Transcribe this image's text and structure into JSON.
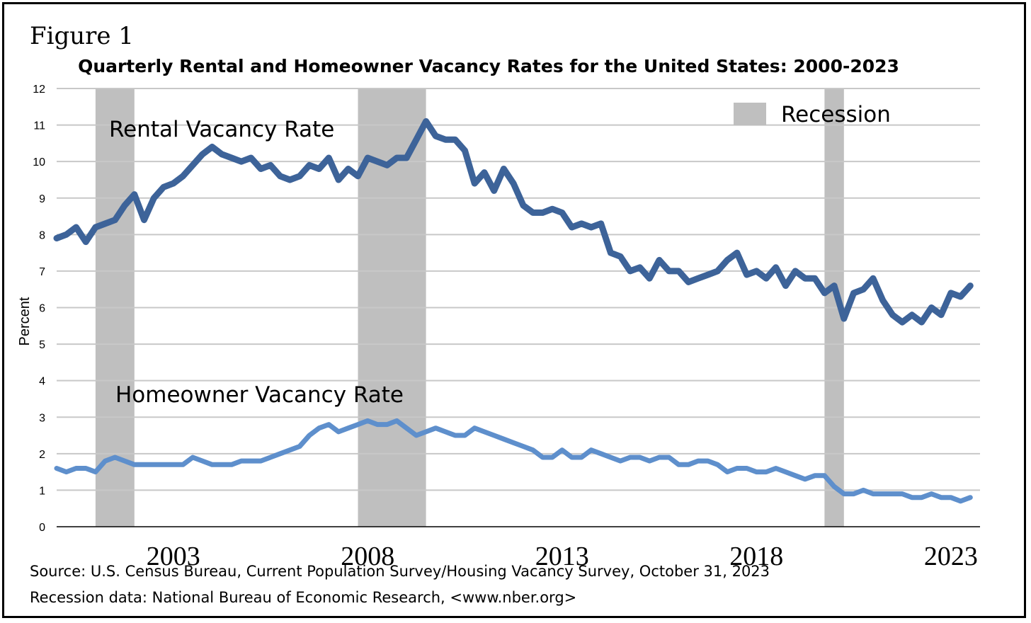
{
  "figure_label": "Figure 1",
  "source_lines": [
    "Source: U.S. Census Bureau, Current Population Survey/Housing Vacancy Survey, October 31, 2023",
    "Recession data: National Bureau of Economic Research, <www.nber.org>"
  ],
  "colors": {
    "rental": "#3D6399",
    "homeowner": "#5E8FCC",
    "recession": "#BFBFBF",
    "grid": "#C8C8C8",
    "axis": "#000000"
  },
  "chart_data": {
    "type": "line",
    "title": "Quarterly Rental and Homeowner Vacancy Rates for the United States: 2000-2023",
    "ylabel": "Percent",
    "xlabel": "",
    "ylim": [
      0,
      12
    ],
    "yticks": [
      0,
      1,
      2,
      3,
      4,
      5,
      6,
      7,
      8,
      9,
      10,
      11,
      12
    ],
    "xlim": [
      2000.0,
      2023.75
    ],
    "xticks": [
      2003,
      2008,
      2013,
      2018,
      2023
    ],
    "grid": true,
    "legend": {
      "position": "top-right",
      "entries": [
        "Recession"
      ]
    },
    "recessions": [
      {
        "start": 2001.0,
        "end": 2002.0
      },
      {
        "start": 2007.75,
        "end": 2009.5
      },
      {
        "start": 2019.75,
        "end": 2020.25
      }
    ],
    "series": [
      {
        "name": "Rental Vacancy Rate",
        "x_start": 2000.0,
        "step": 0.25,
        "values": [
          7.9,
          8.0,
          8.2,
          7.8,
          8.2,
          8.3,
          8.4,
          8.8,
          9.1,
          8.4,
          9.0,
          9.3,
          9.4,
          9.6,
          9.9,
          10.2,
          10.4,
          10.2,
          10.1,
          10.0,
          10.1,
          9.8,
          9.9,
          9.6,
          9.5,
          9.6,
          9.9,
          9.8,
          10.1,
          9.5,
          9.8,
          9.6,
          10.1,
          10.0,
          9.9,
          10.1,
          10.1,
          10.6,
          11.1,
          10.7,
          10.6,
          10.6,
          10.3,
          9.4,
          9.7,
          9.2,
          9.8,
          9.4,
          8.8,
          8.6,
          8.6,
          8.7,
          8.6,
          8.2,
          8.3,
          8.2,
          8.3,
          7.5,
          7.4,
          7.0,
          7.1,
          6.8,
          7.3,
          7.0,
          7.0,
          6.7,
          6.8,
          6.9,
          7.0,
          7.3,
          7.5,
          6.9,
          7.0,
          6.8,
          7.1,
          6.6,
          7.0,
          6.8,
          6.8,
          6.4,
          6.6,
          5.7,
          6.4,
          6.5,
          6.8,
          6.2,
          5.8,
          5.6,
          5.8,
          5.6,
          6.0,
          5.8,
          6.4,
          6.3,
          6.6
        ]
      },
      {
        "name": "Homeowner Vacancy Rate",
        "x_start": 2000.0,
        "step": 0.25,
        "values": [
          1.6,
          1.5,
          1.6,
          1.6,
          1.5,
          1.8,
          1.9,
          1.8,
          1.7,
          1.7,
          1.7,
          1.7,
          1.7,
          1.7,
          1.9,
          1.8,
          1.7,
          1.7,
          1.7,
          1.8,
          1.8,
          1.8,
          1.9,
          2.0,
          2.1,
          2.2,
          2.5,
          2.7,
          2.8,
          2.6,
          2.7,
          2.8,
          2.9,
          2.8,
          2.8,
          2.9,
          2.7,
          2.5,
          2.6,
          2.7,
          2.6,
          2.5,
          2.5,
          2.7,
          2.6,
          2.5,
          2.4,
          2.3,
          2.2,
          2.1,
          1.9,
          1.9,
          2.1,
          1.9,
          1.9,
          2.1,
          2.0,
          1.9,
          1.8,
          1.9,
          1.9,
          1.8,
          1.9,
          1.9,
          1.7,
          1.7,
          1.8,
          1.8,
          1.7,
          1.5,
          1.6,
          1.6,
          1.5,
          1.5,
          1.6,
          1.5,
          1.4,
          1.3,
          1.4,
          1.4,
          1.1,
          0.9,
          0.9,
          1.0,
          0.9,
          0.9,
          0.9,
          0.9,
          0.8,
          0.8,
          0.9,
          0.8,
          0.8,
          0.7,
          0.8
        ]
      }
    ]
  }
}
